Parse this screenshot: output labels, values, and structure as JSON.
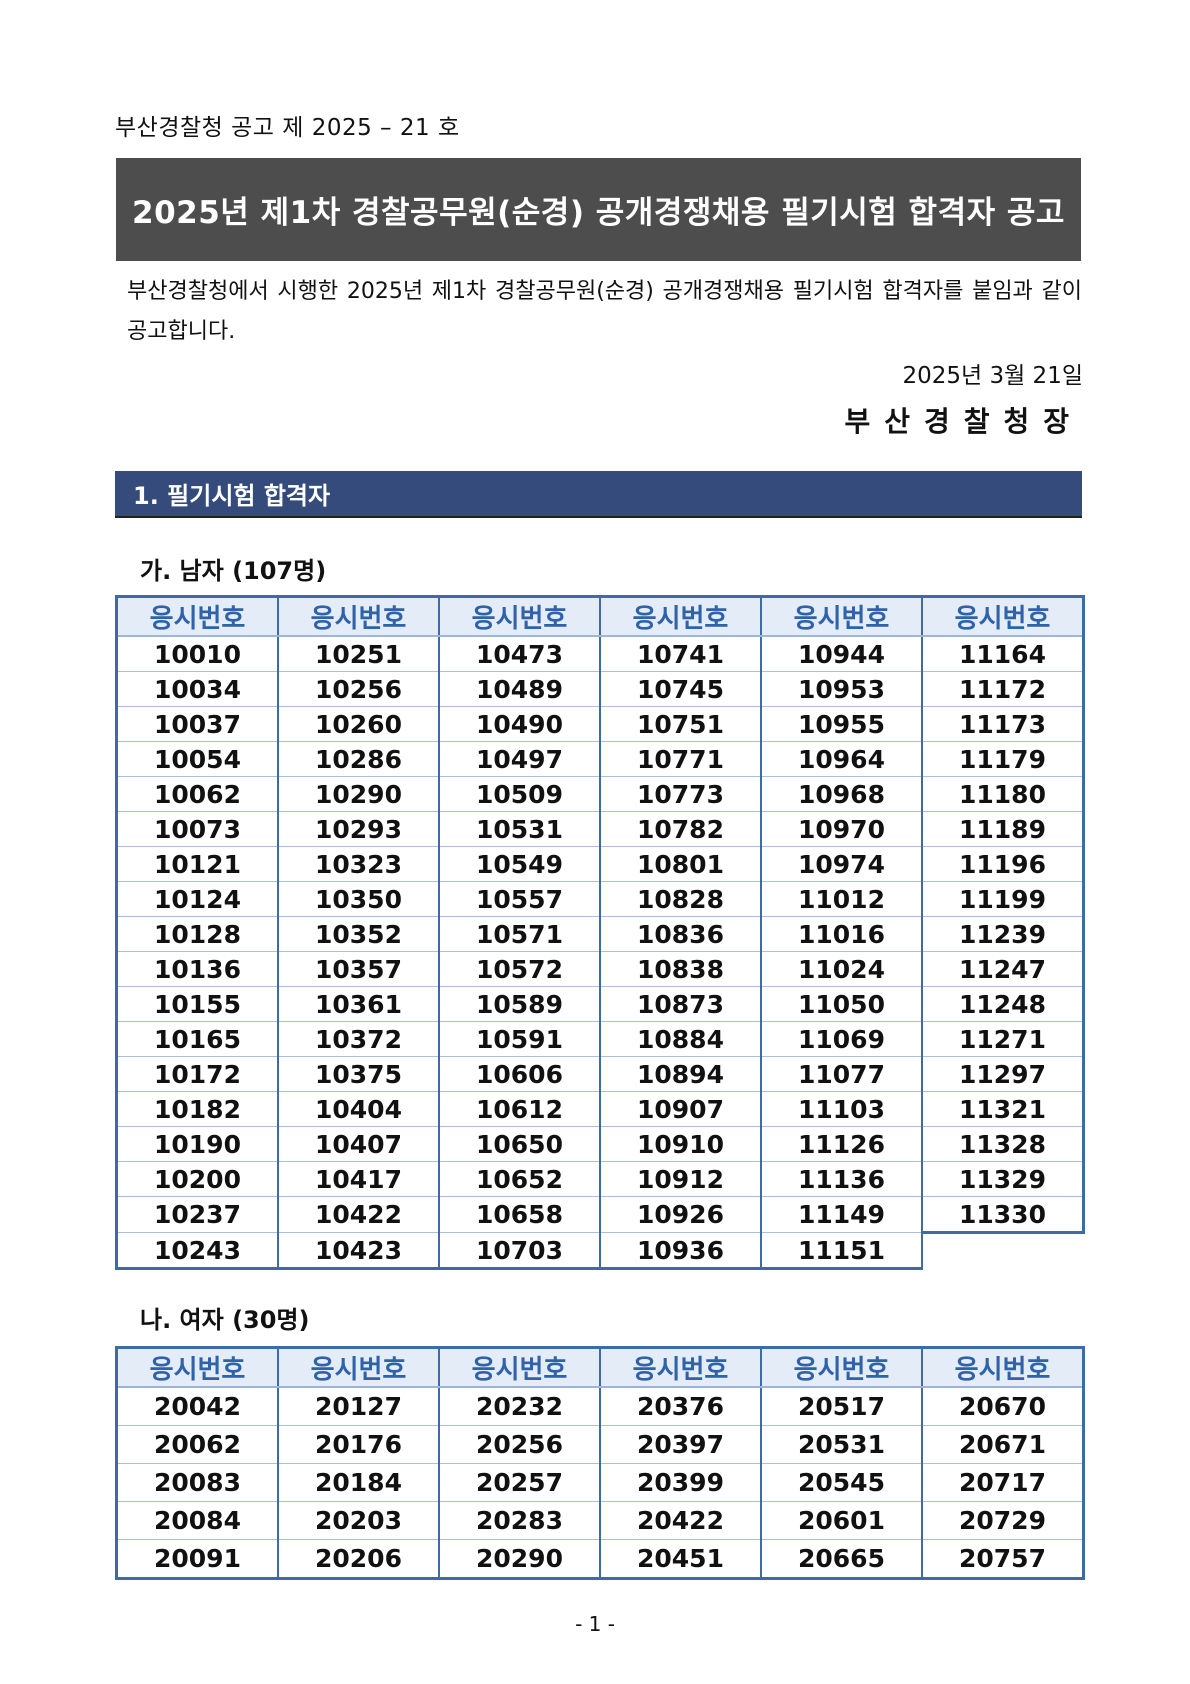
{
  "notice_number": "부산경찰청 공고 제 2025 – 21 호",
  "title": "2025년 제1차 경찰공무원(순경) 공개경쟁채용 필기시험 합격자 공고",
  "intro": "부산경찰청에서 시행한 2025년 제1차 경찰공무원(순경) 공개경쟁채용 필기시험 합격자를 붙임과 같이 공고합니다.",
  "date": "2025년 3월 21일",
  "issuer": "부산경찰청장",
  "section_title": "1. 필기시험 합격자",
  "colors": {
    "title_bar": "#4d4d4d",
    "section_bar": "#354b7c",
    "table_border": "#3e6aa8",
    "header_bg": "#e4ecf7",
    "header_text": "#2f62a8"
  },
  "male": {
    "heading": "가. 남자 (107명)",
    "column_header": "응시번호",
    "columns": [
      [
        "10010",
        "10034",
        "10037",
        "10054",
        "10062",
        "10073",
        "10121",
        "10124",
        "10128",
        "10136",
        "10155",
        "10165",
        "10172",
        "10182",
        "10190",
        "10200",
        "10237",
        "10243"
      ],
      [
        "10251",
        "10256",
        "10260",
        "10286",
        "10290",
        "10293",
        "10323",
        "10350",
        "10352",
        "10357",
        "10361",
        "10372",
        "10375",
        "10404",
        "10407",
        "10417",
        "10422",
        "10423"
      ],
      [
        "10473",
        "10489",
        "10490",
        "10497",
        "10509",
        "10531",
        "10549",
        "10557",
        "10571",
        "10572",
        "10589",
        "10591",
        "10606",
        "10612",
        "10650",
        "10652",
        "10658",
        "10703"
      ],
      [
        "10741",
        "10745",
        "10751",
        "10771",
        "10773",
        "10782",
        "10801",
        "10828",
        "10836",
        "10838",
        "10873",
        "10884",
        "10894",
        "10907",
        "10910",
        "10912",
        "10926",
        "10936"
      ],
      [
        "10944",
        "10953",
        "10955",
        "10964",
        "10968",
        "10970",
        "10974",
        "11012",
        "11016",
        "11024",
        "11050",
        "11069",
        "11077",
        "11103",
        "11126",
        "11136",
        "11149",
        "11151"
      ],
      [
        "11164",
        "11172",
        "11173",
        "11179",
        "11180",
        "11189",
        "11196",
        "11199",
        "11239",
        "11247",
        "11248",
        "11271",
        "11297",
        "11321",
        "11328",
        "11329",
        "11330"
      ]
    ]
  },
  "female": {
    "heading": "나. 여자 (30명)",
    "column_header": "응시번호",
    "columns": [
      [
        "20042",
        "20062",
        "20083",
        "20084",
        "20091"
      ],
      [
        "20127",
        "20176",
        "20184",
        "20203",
        "20206"
      ],
      [
        "20232",
        "20256",
        "20257",
        "20283",
        "20290"
      ],
      [
        "20376",
        "20397",
        "20399",
        "20422",
        "20451"
      ],
      [
        "20517",
        "20531",
        "20545",
        "20601",
        "20665"
      ],
      [
        "20670",
        "20671",
        "20717",
        "20729",
        "20757"
      ]
    ]
  },
  "page_number": "- 1 -"
}
